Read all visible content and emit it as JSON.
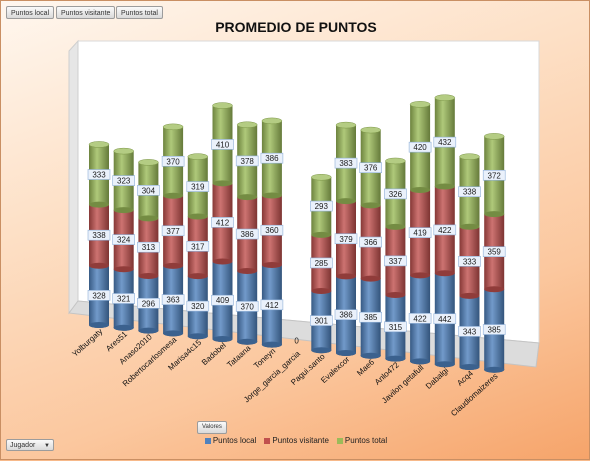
{
  "filters": {
    "pages": [
      "Puntos local",
      "Puntos visitante",
      "Puntos total"
    ],
    "valores": "Valores",
    "row_field": "Jugador"
  },
  "colors": {
    "local": "#4f81bd",
    "visitante": "#c0504d",
    "total": "#9bbb59",
    "wall": "#ffffff"
  },
  "chart_data": {
    "type": "bar",
    "stacked": true,
    "style": "3d-cylinder",
    "title": "PROMEDIO DE PUNTOS",
    "categories": [
      "Yolburgaty",
      "Ares51",
      "Anaso2010",
      "Robertocarlosmesa",
      "Marisa4c15",
      "Badobel",
      "Tataana",
      "Toneyn",
      "Jorge_garcia_garcia",
      "Pagui.santo",
      "Evalexcor",
      "Mae6",
      "Anlo472",
      "Javilon getafull",
      "Dabalgi",
      "Acq4",
      "Claudiomaizeres"
    ],
    "series": [
      {
        "name": "Puntos local",
        "color": "#4f81bd",
        "values": [
          328,
          321,
          296,
          363,
          320,
          409,
          370,
          412,
          0,
          301,
          386,
          385,
          315,
          422,
          442,
          343,
          385
        ]
      },
      {
        "name": "Puntos visitante",
        "color": "#c0504d",
        "values": [
          338,
          324,
          313,
          377,
          317,
          412,
          386,
          360,
          0,
          285,
          379,
          366,
          337,
          419,
          422,
          333,
          359
        ]
      },
      {
        "name": "Puntos total",
        "color": "#9bbb59",
        "values": [
          333,
          323,
          304,
          370,
          319,
          410,
          378,
          386,
          0,
          293,
          383,
          376,
          326,
          420,
          432,
          338,
          372
        ]
      }
    ],
    "legend_position": "bottom",
    "grid": false
  }
}
